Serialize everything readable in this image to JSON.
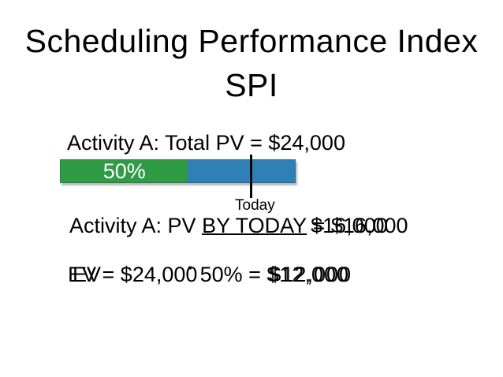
{
  "title": {
    "line1": "Scheduling Performance Index",
    "line2": "SPI"
  },
  "activity": {
    "total_pv_text": "Activity A: Total PV = $24,000",
    "bar": {
      "percent_label": "50%",
      "percent_complete": 50,
      "complete_color": "#2f9b44",
      "remaining_color": "#2e80b6",
      "percent_text_color": "#ffffff"
    },
    "today_label": "Today"
  },
  "pv_line": {
    "prefix": "Activity A: PV ",
    "underlined": "BY TODAY",
    "value_layer1": " = $16,000",
    "value_layer2": "$16,000"
  },
  "ev_line": {
    "ev": "EV",
    "middle": " = $24,000",
    "dot": "·",
    "middle2": " 50% = ",
    "result": "$12,000"
  }
}
